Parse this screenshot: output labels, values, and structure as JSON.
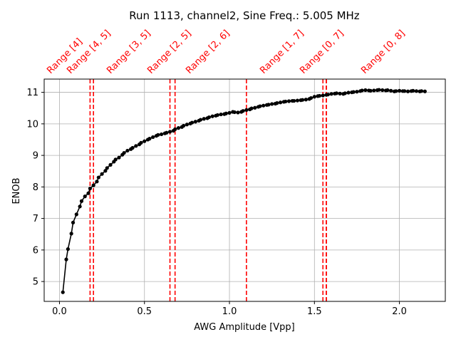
{
  "chart_data": {
    "type": "line",
    "title": "Run 1113, channel2, Sine Freq.: 5.005 MHz",
    "xlabel": "AWG Amplitude [Vpp]",
    "ylabel": "ENOB",
    "xlim": [
      -0.09,
      2.27
    ],
    "ylim": [
      4.37,
      11.42
    ],
    "xticks": [
      0.0,
      0.5,
      1.0,
      1.5,
      2.0
    ],
    "xtick_labels": [
      "0.0",
      "0.5",
      "1.0",
      "1.5",
      "2.0"
    ],
    "yticks": [
      5,
      6,
      7,
      8,
      9,
      10,
      11
    ],
    "ytick_labels": [
      "5",
      "6",
      "7",
      "8",
      "9",
      "10",
      "11"
    ],
    "grid": true,
    "series": [
      {
        "color": "#000000",
        "marker": "circle",
        "x": [
          0.02,
          0.04,
          0.05,
          0.07,
          0.08,
          0.1,
          0.12,
          0.13,
          0.15,
          0.17,
          0.18,
          0.2,
          0.22,
          0.23,
          0.25,
          0.27,
          0.28,
          0.3,
          0.32,
          0.33,
          0.35,
          0.37,
          0.38,
          0.4,
          0.42,
          0.43,
          0.45,
          0.47,
          0.48,
          0.5,
          0.52,
          0.53,
          0.55,
          0.57,
          0.58,
          0.6,
          0.62,
          0.63,
          0.65,
          0.67,
          0.68,
          0.7,
          0.72,
          0.73,
          0.75,
          0.77,
          0.78,
          0.8,
          0.82,
          0.83,
          0.85,
          0.87,
          0.88,
          0.9,
          0.92,
          0.93,
          0.95,
          0.97,
          0.98,
          1.0,
          1.02,
          1.03,
          1.05,
          1.07,
          1.08,
          1.1,
          1.12,
          1.13,
          1.15,
          1.17,
          1.18,
          1.2,
          1.22,
          1.23,
          1.25,
          1.27,
          1.28,
          1.3,
          1.32,
          1.33,
          1.35,
          1.37,
          1.38,
          1.4,
          1.42,
          1.43,
          1.45,
          1.47,
          1.48,
          1.5,
          1.52,
          1.53,
          1.55,
          1.57,
          1.58,
          1.6,
          1.62,
          1.63,
          1.65,
          1.67,
          1.68,
          1.7,
          1.72,
          1.73,
          1.75,
          1.77,
          1.78,
          1.8,
          1.82,
          1.83,
          1.85,
          1.87,
          1.88,
          1.9,
          1.92,
          1.93,
          1.95,
          1.97,
          1.98,
          2.0,
          2.02,
          2.03,
          2.05,
          2.07,
          2.08,
          2.1,
          2.12,
          2.13,
          2.15
        ],
        "y": [
          4.66,
          5.7,
          6.03,
          6.52,
          6.87,
          7.13,
          7.38,
          7.55,
          7.7,
          7.8,
          7.95,
          8.05,
          8.17,
          8.3,
          8.41,
          8.51,
          8.6,
          8.7,
          8.8,
          8.87,
          8.93,
          9.02,
          9.08,
          9.15,
          9.2,
          9.24,
          9.3,
          9.35,
          9.4,
          9.45,
          9.5,
          9.53,
          9.58,
          9.62,
          9.65,
          9.67,
          9.7,
          9.72,
          9.75,
          9.78,
          9.83,
          9.87,
          9.9,
          9.94,
          9.98,
          10.01,
          10.04,
          10.07,
          10.1,
          10.13,
          10.16,
          10.18,
          10.21,
          10.24,
          10.26,
          10.28,
          10.3,
          10.31,
          10.33,
          10.35,
          10.38,
          10.37,
          10.36,
          10.38,
          10.41,
          10.44,
          10.46,
          10.49,
          10.51,
          10.54,
          10.56,
          10.58,
          10.6,
          10.61,
          10.63,
          10.64,
          10.66,
          10.68,
          10.7,
          10.71,
          10.72,
          10.73,
          10.73,
          10.74,
          10.75,
          10.76,
          10.77,
          10.79,
          10.82,
          10.86,
          10.88,
          10.89,
          10.9,
          10.92,
          10.93,
          10.95,
          10.96,
          10.97,
          10.96,
          10.95,
          10.97,
          10.99,
          11.0,
          11.01,
          11.02,
          11.04,
          11.06,
          11.07,
          11.06,
          11.05,
          11.06,
          11.07,
          11.08,
          11.07,
          11.06,
          11.07,
          11.05,
          11.03,
          11.04,
          11.05,
          11.04,
          11.04,
          11.03,
          11.04,
          11.05,
          11.04,
          11.03,
          11.04,
          11.03
        ]
      }
    ],
    "vertical_lines": [
      {
        "x": 0.18,
        "label": "Range [4]"
      },
      {
        "x": 0.2,
        "label": "Range [4, 5]"
      },
      {
        "x": 0.65,
        "label": "Range [3, 5]"
      },
      {
        "x": 0.68,
        "label": "Range [2, 5]"
      },
      {
        "x": 1.1,
        "label": "Range [2, 6]"
      },
      {
        "x": 1.55,
        "label": "Range [1, 7]"
      },
      {
        "x": 1.57,
        "label": "Range [0, 7]"
      },
      {
        "x": 1.57,
        "label": "Range [0, 8]"
      }
    ],
    "vertical_line_color": "#ff0000"
  }
}
